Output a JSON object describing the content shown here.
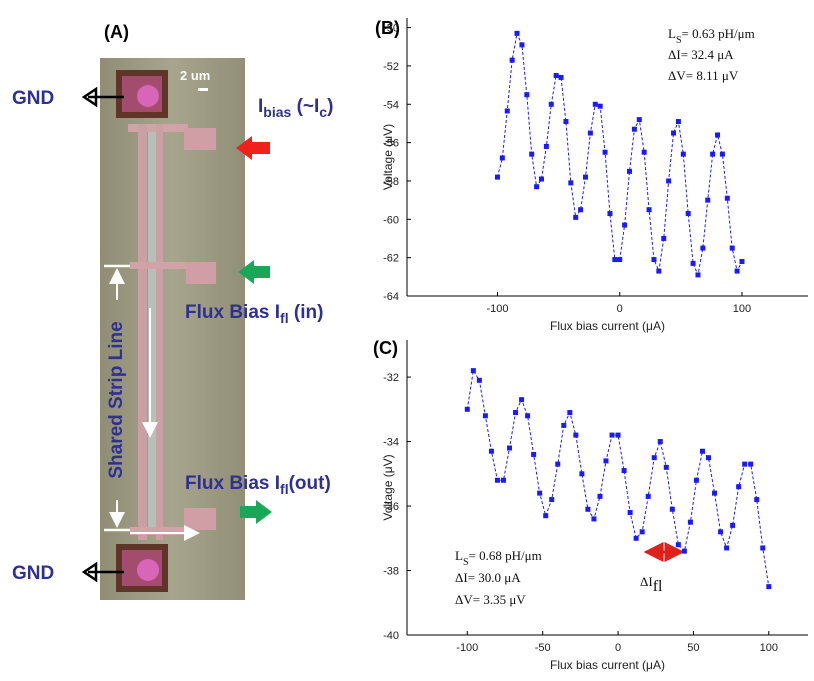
{
  "panel_a": {
    "label": "(A)",
    "scale_bar": "2 um",
    "labels": [
      [
        {
          "text": "GND"
        }
      ],
      [
        {
          "text": "GND"
        }
      ],
      [
        {
          "text": "I"
        },
        {
          "text": "bias",
          "sub": true
        },
        {
          "text": " (~I"
        },
        {
          "text": "c",
          "sub": true
        },
        {
          "text": ")"
        }
      ],
      [
        {
          "text": "Flux Bias I"
        },
        {
          "text": "fl",
          "sub": true
        },
        {
          "text": " (in)"
        }
      ],
      [
        {
          "text": "Flux Bias I"
        },
        {
          "text": "fl",
          "sub": true
        },
        {
          "text": "(out)"
        }
      ],
      [
        {
          "text": "Shared Strip Line"
        }
      ]
    ]
  },
  "chart_data": [
    {
      "type": "line",
      "title": "(B)",
      "color": "#1a1aff",
      "x_label": "Flux bias current (μA)",
      "y_label": "Voltage (μV)",
      "annotations": [
        [
          {
            "text": "L"
          },
          {
            "text": "S",
            "sub": true
          },
          {
            "text": "= 0.63 pH/μm"
          }
        ],
        [
          {
            "text": "ΔI= 32.4 μA"
          }
        ],
        [
          {
            "text": "ΔV= 8.11 μV"
          }
        ]
      ],
      "xlim": [
        -174,
        154
      ],
      "xticks": [
        -100,
        0,
        100
      ],
      "ylim": [
        -64,
        -49.5
      ],
      "yticks": [
        -64,
        -62,
        -60,
        -58,
        -56,
        -54,
        -52,
        -50
      ],
      "x": [
        -100,
        -96,
        -92,
        -88,
        -84,
        -80,
        -76,
        -72,
        -68,
        -64,
        -60,
        -56,
        -52,
        -48,
        -44,
        -40,
        -36,
        -32,
        -28,
        -24,
        -20,
        -16,
        -12,
        -8,
        -4,
        0,
        4,
        8,
        12,
        16,
        20,
        24,
        28,
        32,
        36,
        40,
        44,
        48,
        52,
        56,
        60,
        64,
        68,
        72,
        76,
        80,
        84,
        88,
        92,
        96,
        100
      ],
      "values": [
        -57.8,
        -56.8,
        -54.35,
        -51.7,
        -50.3,
        -50.9,
        -53.5,
        -56.6,
        -58.3,
        -57.9,
        -56.2,
        -54.0,
        -52.5,
        -52.6,
        -54.9,
        -58.1,
        -59.9,
        -59.5,
        -57.8,
        -55.5,
        -54.0,
        -54.1,
        -56.5,
        -59.7,
        -62.1,
        -62.1,
        -60.3,
        -57.5,
        -55.3,
        -54.8,
        -56.5,
        -59.5,
        -62.1,
        -62.7,
        -61.0,
        -58.0,
        -55.5,
        -54.9,
        -56.6,
        -59.7,
        -62.3,
        -62.9,
        -61.5,
        -59.0,
        -56.6,
        -55.6,
        -56.6,
        -58.9,
        -61.5,
        -62.7,
        -62.2
      ]
    },
    {
      "type": "line",
      "title": "(C)",
      "color": "#1a1aff",
      "x_label": "Flux bias current (μA)",
      "y_label": "Voltage (μV)",
      "annotations": [
        [
          {
            "text": "L"
          },
          {
            "text": "S",
            "sub": true
          },
          {
            "text": "= 0.68 pH/μm"
          }
        ],
        [
          {
            "text": "ΔI= 30.0 μA"
          }
        ],
        [
          {
            "text": "ΔV= 3.35 μV"
          }
        ]
      ],
      "marker_label": [
        {
          "text": "ΔI"
        },
        {
          "text": "fl",
          "sub": true
        }
      ],
      "xlim": [
        -140,
        126
      ],
      "xticks": [
        -100,
        -50,
        0,
        50,
        100
      ],
      "ylim": [
        -40,
        -30.85
      ],
      "yticks": [
        -40,
        -38,
        -36,
        -34,
        -32
      ],
      "x": [
        -100,
        -96,
        -92,
        -88,
        -84,
        -80,
        -76,
        -72,
        -68,
        -64,
        -60,
        -56,
        -52,
        -48,
        -44,
        -40,
        -36,
        -32,
        -28,
        -24,
        -20,
        -16,
        -12,
        -8,
        -4,
        0,
        4,
        8,
        12,
        16,
        20,
        24,
        28,
        32,
        36,
        40,
        44,
        48,
        52,
        56,
        60,
        64,
        68,
        72,
        76,
        80,
        84,
        88,
        92,
        96,
        100
      ],
      "values": [
        -33.0,
        -31.8,
        -32.1,
        -33.2,
        -34.3,
        -35.2,
        -35.2,
        -34.2,
        -33.1,
        -32.7,
        -33.2,
        -34.4,
        -35.6,
        -36.3,
        -35.8,
        -34.7,
        -33.5,
        -33.1,
        -33.8,
        -35.0,
        -36.1,
        -36.4,
        -35.7,
        -34.6,
        -33.8,
        -33.8,
        -34.9,
        -36.2,
        -37.0,
        -36.8,
        -35.7,
        -34.5,
        -34.0,
        -34.8,
        -36.1,
        -37.2,
        -37.4,
        -36.5,
        -35.2,
        -34.3,
        -34.5,
        -35.6,
        -36.8,
        -37.3,
        -36.6,
        -35.4,
        -34.7,
        -34.7,
        -35.8,
        -37.3,
        -38.5
      ]
    }
  ]
}
